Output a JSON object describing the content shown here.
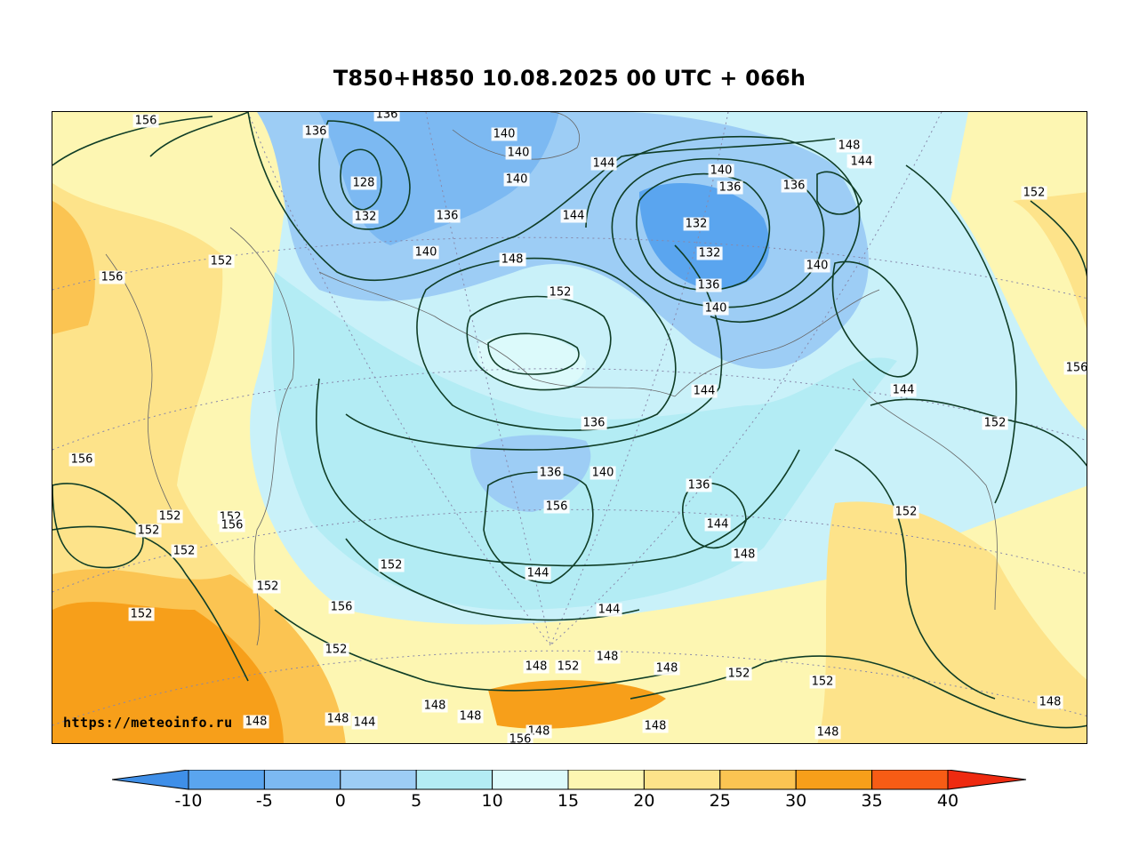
{
  "title": "T850+H850 10.08.2025 00 UTC + 066h",
  "credit": "https://meteoinfo.ru",
  "colorbar": {
    "ticks": [
      "-10",
      "-5",
      "0",
      "5",
      "10",
      "15",
      "20",
      "25",
      "30",
      "35",
      "40"
    ],
    "colors": [
      "#3f8fe8",
      "#5aa5ef",
      "#7cb9f2",
      "#9dcdf5",
      "#b3ecf4",
      "#dcfafb",
      "#fdf6b2",
      "#fde38a",
      "#fbc452",
      "#f79f1a",
      "#f75c15",
      "#ee2a10"
    ]
  },
  "contour_labels": [
    "156",
    "136",
    "136",
    "128",
    "132",
    "136",
    "140",
    "140",
    "140",
    "140",
    "144",
    "144",
    "152",
    "148",
    "144",
    "140",
    "136",
    "132",
    "132",
    "136",
    "136",
    "140",
    "140",
    "144",
    "148",
    "144",
    "152",
    "156",
    "156",
    "152",
    "148",
    "144",
    "140",
    "136",
    "136",
    "140",
    "136",
    "144",
    "144",
    "148",
    "152",
    "156",
    "156",
    "152",
    "152",
    "152",
    "156",
    "156",
    "152",
    "152",
    "152",
    "152",
    "148",
    "152",
    "144",
    "148",
    "152",
    "152",
    "148",
    "148",
    "148",
    "148",
    "144",
    "156",
    "148",
    "148",
    "148",
    "148",
    "148",
    "152",
    "156",
    "152"
  ]
}
